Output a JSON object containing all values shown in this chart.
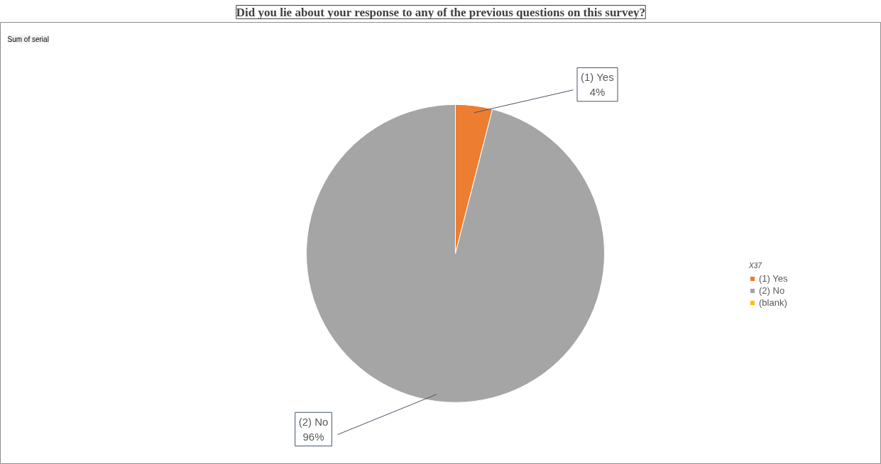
{
  "chart_data": {
    "type": "pie",
    "title": "Did you lie about your response to any of the previous questions on this survey?",
    "categories": [
      "(1) Yes",
      "(2) No",
      "(blank)"
    ],
    "values": [
      4,
      96,
      0
    ],
    "colors": [
      "#ed7d31",
      "#a5a5a5",
      "#ffc000"
    ],
    "value_labels": [
      "4%",
      "96%",
      null
    ],
    "legend_title": "X37",
    "legend": "right",
    "annotations": [
      "Sum of serial"
    ]
  }
}
